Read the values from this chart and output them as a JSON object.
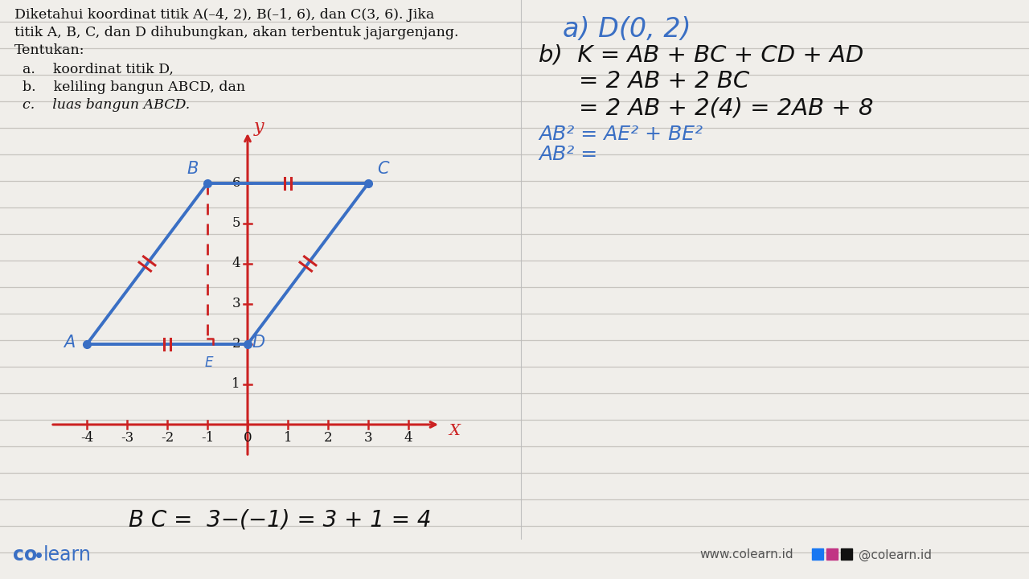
{
  "bg_color": "#f0eeea",
  "line_color_blue": "#3a6fc4",
  "line_color_red": "#cc2222",
  "text_color_black": "#111111",
  "text_color_blue": "#3a6fc4",
  "problem_text_line1": "Diketahui koordinat titik A(–4, 2), B(–1, 6), dan C(3, 6). Jika",
  "problem_text_line2": "titik A, B, C, dan D dihubungkan, akan terbentuk jajargenjang.",
  "problem_text_line3": "Tentukan:",
  "sub_a": "a.    koordinat titik D,",
  "sub_b": "b.    keliling bangun ABCD, dan",
  "sub_c": "c.    luas bangun ABCD.",
  "answer_a": "a) D(0, 2)",
  "answer_b_line1": "b)  K = AB + BC + CD + AD",
  "answer_b_line2": "         = 2 AB + 2 BC",
  "answer_b_line3": "         = 2 AB + 2(4) = 2AB + 8",
  "answer_ab2_line1": "AB² = AE² + BE²",
  "answer_ab2_line2": "AB² = ",
  "bottom_text": "B C =  3−(−1) = 3 + 1 = 4",
  "website_text": "www.colearn.id",
  "social_text": "@colearn.id",
  "points": {
    "A": [
      -4,
      2
    ],
    "B": [
      -1,
      6
    ],
    "C": [
      3,
      6
    ],
    "D": [
      0,
      2
    ]
  },
  "axis_xticks": [
    -4,
    -3,
    -2,
    -1,
    0,
    1,
    2,
    3,
    4
  ],
  "axis_yticks": [
    1,
    2,
    3,
    4,
    5,
    6
  ],
  "notebook_line_color": "#c0bdb8",
  "notebook_line_alpha": 0.85
}
